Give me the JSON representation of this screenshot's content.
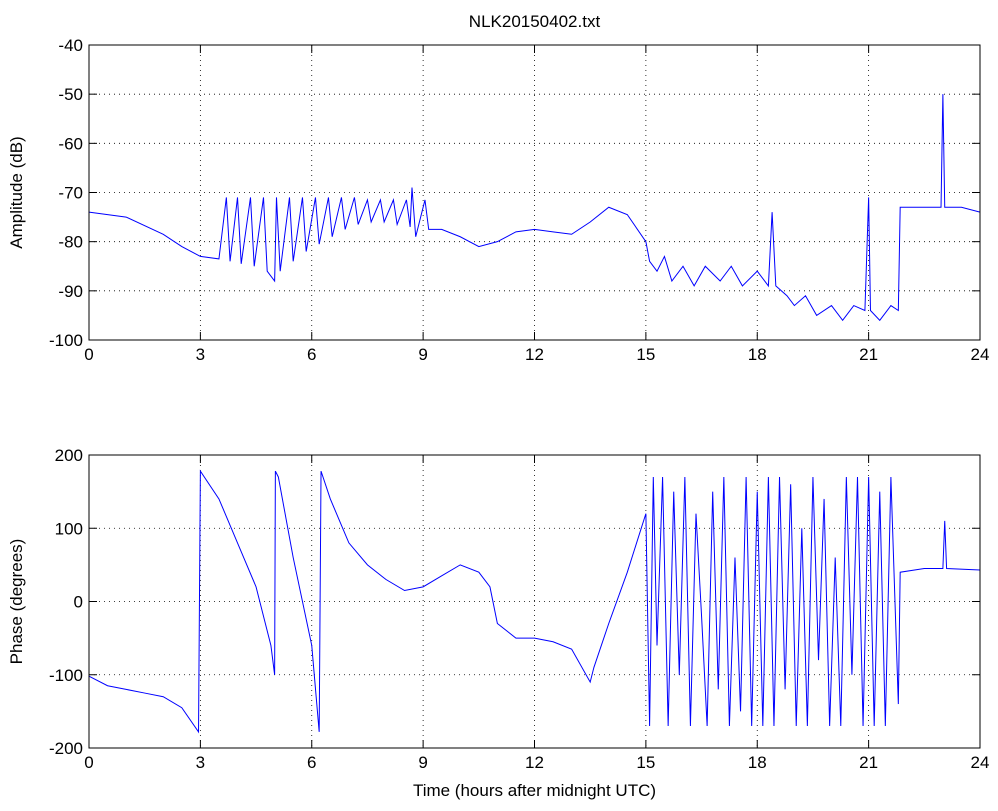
{
  "chart_data": [
    {
      "type": "line",
      "title": "NLK20150402.txt",
      "ylabel": "Amplitude (dB)",
      "color": "#0000ff",
      "grid": true,
      "xlim": [
        0,
        24
      ],
      "xticks": [
        0,
        3,
        6,
        9,
        12,
        15,
        18,
        21,
        24
      ],
      "ylim": [
        -100,
        -40
      ],
      "yticks": [
        -100,
        -90,
        -80,
        -70,
        -60,
        -50,
        -40
      ],
      "x": [
        0,
        1,
        2,
        2.5,
        3,
        3.5,
        3.7,
        3.8,
        4.0,
        4.1,
        4.35,
        4.45,
        4.7,
        4.8,
        5.0,
        5.05,
        5.15,
        5.4,
        5.5,
        5.75,
        5.85,
        6.1,
        6.2,
        6.45,
        6.55,
        6.8,
        6.9,
        7.15,
        7.25,
        7.5,
        7.6,
        7.85,
        7.95,
        8.2,
        8.3,
        8.55,
        8.65,
        8.7,
        8.8,
        9.05,
        9.15,
        9.5,
        10,
        10.5,
        11,
        11.5,
        12,
        12.5,
        13,
        13.5,
        14,
        14.5,
        15,
        15.1,
        15.3,
        15.5,
        15.7,
        16,
        16.3,
        16.6,
        17,
        17.3,
        17.6,
        18,
        18.3,
        18.4,
        18.5,
        18.8,
        19,
        19.3,
        19.6,
        20,
        20.3,
        20.6,
        20.9,
        21,
        21.05,
        21.3,
        21.6,
        21.8,
        21.85,
        22.5,
        22.95,
        23,
        23.05,
        23.5,
        24
      ],
      "values": [
        -74,
        -75,
        -78.5,
        -81,
        -83,
        -83.5,
        -71,
        -84,
        -71,
        -84.5,
        -71,
        -85,
        -71,
        -86,
        -88,
        -71,
        -86,
        -71,
        -84,
        -71,
        -82,
        -71,
        -80.5,
        -71,
        -79,
        -71,
        -77.5,
        -71,
        -76.5,
        -71.5,
        -76,
        -71.5,
        -76,
        -71.5,
        -76.5,
        -71.5,
        -77,
        -69,
        -79,
        -71.5,
        -77.5,
        -77.5,
        -79,
        -81,
        -80,
        -78,
        -77.5,
        -78,
        -78.5,
        -76,
        -73,
        -74.5,
        -80,
        -84,
        -86,
        -83,
        -88,
        -85,
        -89,
        -85,
        -88,
        -85,
        -89,
        -86,
        -89,
        -74,
        -89,
        -91,
        -93,
        -91,
        -95,
        -93,
        -96,
        -93,
        -94,
        -71,
        -94,
        -96,
        -93,
        -94,
        -73,
        -73,
        -73,
        -50,
        -73,
        -73,
        -74
      ]
    },
    {
      "type": "line",
      "ylabel": "Phase (degrees)",
      "xlabel": "Time (hours after midnight UTC)",
      "color": "#0000ff",
      "grid": true,
      "xlim": [
        0,
        24
      ],
      "xticks": [
        0,
        3,
        6,
        9,
        12,
        15,
        18,
        21,
        24
      ],
      "ylim": [
        -200,
        200
      ],
      "yticks": [
        -200,
        -100,
        0,
        100,
        200
      ],
      "x": [
        0,
        0.5,
        1,
        1.5,
        2,
        2.5,
        2.95,
        3.0,
        3.5,
        4,
        4.5,
        4.9,
        5.0,
        5.02,
        5.1,
        5.5,
        6.0,
        6.2,
        6.25,
        6.5,
        7,
        7.5,
        8,
        8.5,
        9,
        9.5,
        10,
        10.5,
        10.8,
        11,
        11.5,
        12,
        12.5,
        13,
        13.5,
        13.6,
        14,
        14.5,
        15,
        15.1,
        15.2,
        15.3,
        15.45,
        15.6,
        15.75,
        15.9,
        16.05,
        16.2,
        16.35,
        16.5,
        16.65,
        16.8,
        16.95,
        17.1,
        17.25,
        17.4,
        17.55,
        17.7,
        17.85,
        18.0,
        18.15,
        18.3,
        18.45,
        18.6,
        18.75,
        18.9,
        19.05,
        19.2,
        19.35,
        19.5,
        19.65,
        19.8,
        19.95,
        20.1,
        20.25,
        20.4,
        20.55,
        20.7,
        20.85,
        21.0,
        21.15,
        21.3,
        21.45,
        21.6,
        21.8,
        21.85,
        22.5,
        23,
        23.05,
        23.1,
        24
      ],
      "values": [
        -102,
        -115,
        -120,
        -125,
        -130,
        -145,
        -178,
        178,
        140,
        80,
        20,
        -60,
        -100,
        178,
        170,
        60,
        -60,
        -178,
        178,
        140,
        80,
        50,
        30,
        15,
        20,
        35,
        50,
        40,
        20,
        -30,
        -50,
        -50,
        -55,
        -65,
        -110,
        -90,
        -30,
        40,
        120,
        -170,
        170,
        -60,
        170,
        -170,
        150,
        -100,
        170,
        -170,
        120,
        -20,
        -170,
        150,
        -120,
        170,
        -170,
        60,
        -150,
        170,
        -170,
        150,
        -170,
        170,
        -170,
        170,
        -120,
        160,
        -170,
        100,
        -170,
        170,
        -80,
        140,
        -170,
        60,
        -170,
        170,
        -100,
        170,
        -170,
        170,
        -170,
        150,
        -170,
        170,
        -140,
        40,
        45,
        45,
        110,
        45,
        43
      ]
    }
  ]
}
